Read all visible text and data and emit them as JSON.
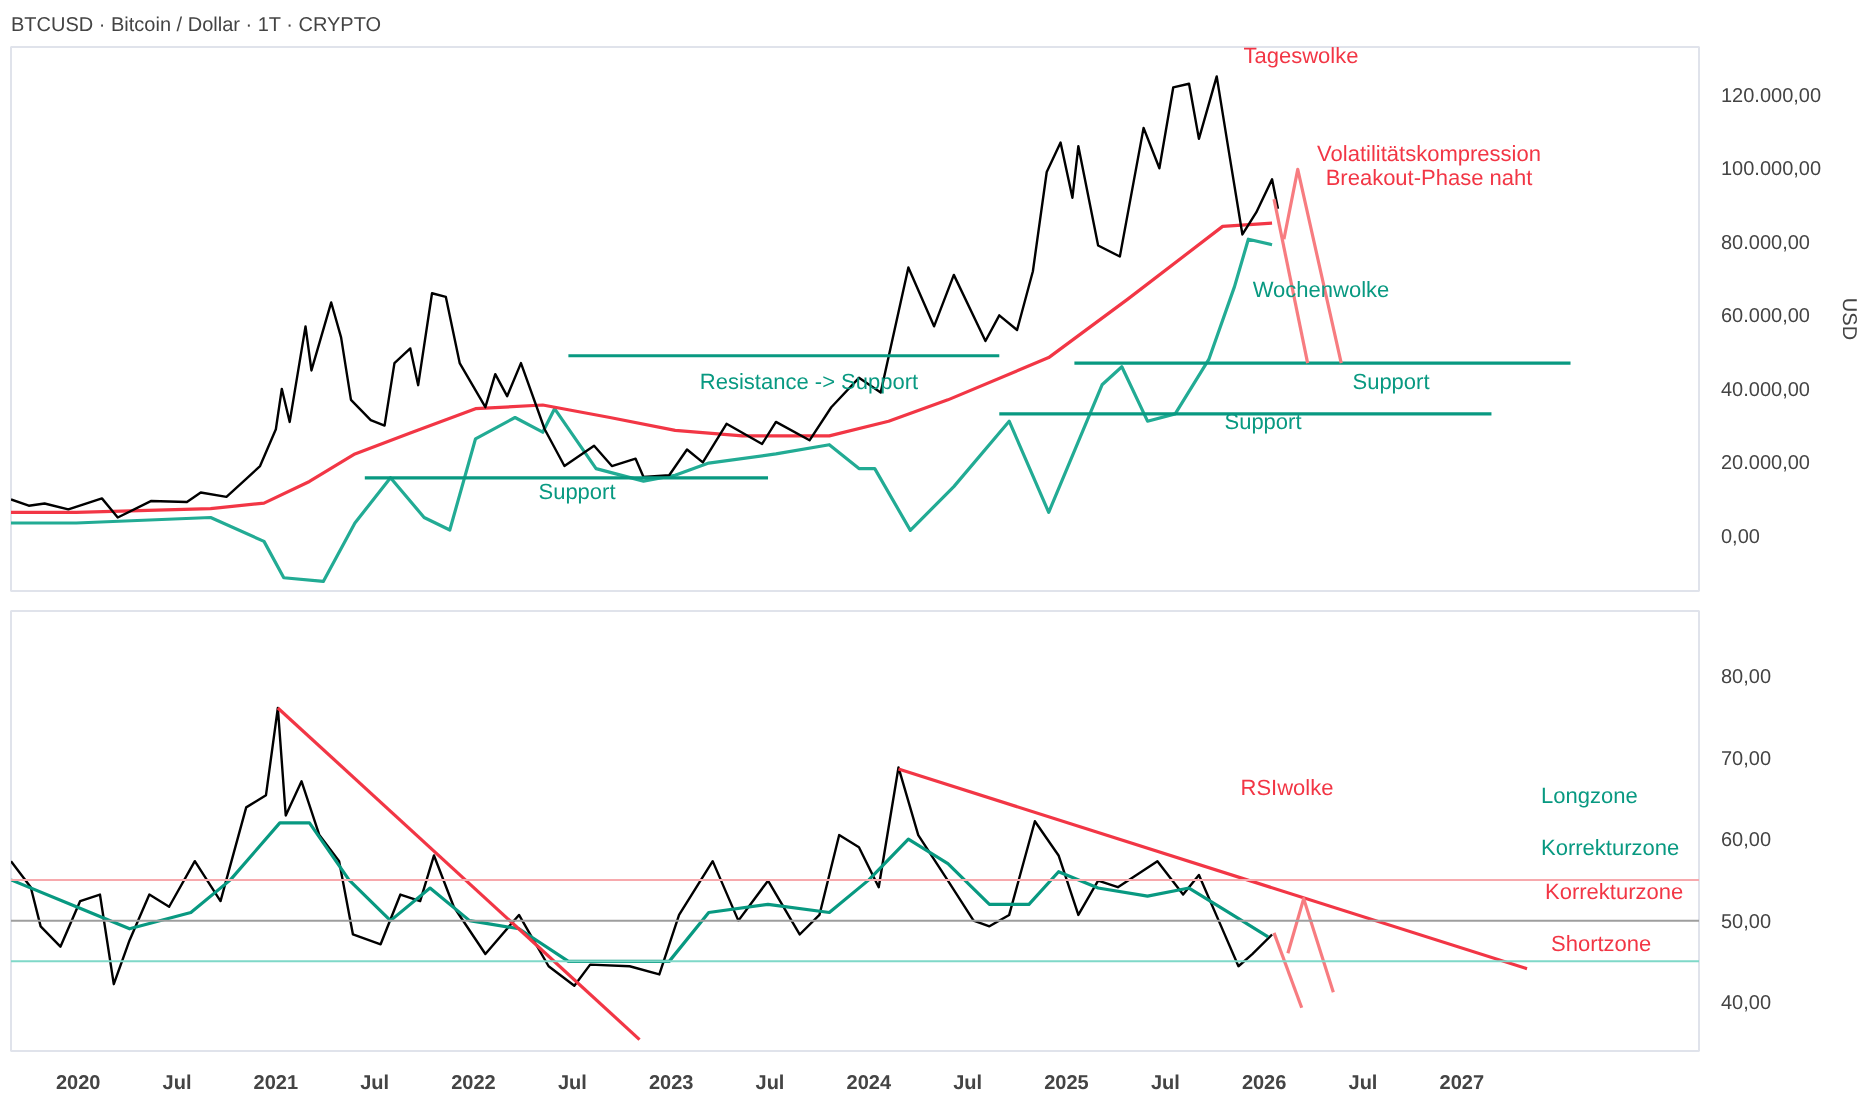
{
  "chart_data": [
    {
      "type": "line",
      "title": "BTCUSD · Bitcoin / Dollar · 1T · CRYPTO",
      "ylabel": "USD",
      "tick_labels": "y",
      "xlim": [
        2019.66,
        2028.2
      ],
      "ylim": [
        -15000,
        133000
      ],
      "yticks": [
        {
          "value": 0,
          "label": "0,00"
        },
        {
          "value": 20000,
          "label": "20.000,00"
        },
        {
          "value": 40000,
          "label": "40.000,00"
        },
        {
          "value": 60000,
          "label": "60.000,00"
        },
        {
          "value": 80000,
          "label": "80.000,00"
        },
        {
          "value": 100000,
          "label": "100.000,00"
        },
        {
          "value": 120000,
          "label": "120.000,00"
        }
      ],
      "series": [
        {
          "color": "#22ab94",
          "x": [
            2019.66,
            2019.99,
            2020.67,
            2020.94,
            2021.04,
            2021.24,
            2021.4,
            2021.58,
            2021.75,
            2021.88,
            2022.01,
            2022.21,
            2022.35,
            2022.41,
            2022.62,
            2022.86,
            2023.02,
            2023.19,
            2023.53,
            2023.8,
            2023.95,
            2024.03,
            2024.21,
            2024.43,
            2024.71,
            2024.91,
            2025.18,
            2025.28,
            2025.41,
            2025.55,
            2025.72,
            2025.85,
            2025.92,
            2026.04
          ],
          "values": [
            3500,
            3500,
            5000,
            -1500,
            -11400,
            -12400,
            3500,
            15800,
            5000,
            1600,
            26400,
            32200,
            28200,
            34600,
            18300,
            14900,
            16500,
            19800,
            22300,
            24800,
            18300,
            18300,
            1500,
            13400,
            31200,
            6400,
            41100,
            46000,
            31200,
            33200,
            48000,
            67800,
            80700,
            79200
          ]
        },
        {
          "color": "#f23645",
          "x": [
            2019.66,
            2019.99,
            2020.67,
            2020.94,
            2021.17,
            2021.4,
            2021.68,
            2022.01,
            2022.35,
            2022.69,
            2023.02,
            2023.36,
            2023.8,
            2024.1,
            2024.4,
            2024.91,
            2025.31,
            2025.79,
            2026.04
          ],
          "values": [
            6400,
            6400,
            7400,
            8900,
            14800,
            22300,
            28000,
            34600,
            35600,
            32200,
            28700,
            27200,
            27200,
            31200,
            37000,
            48500,
            64400,
            84200,
            85100
          ]
        },
        {
          "color": "#000000",
          "x": [
            2019.66,
            2019.75,
            2019.83,
            2019.95,
            2020.12,
            2020.2,
            2020.37,
            2020.55,
            2020.62,
            2020.75,
            2020.85,
            2020.92,
            2021.0,
            2021.03,
            2021.07,
            2021.15,
            2021.18,
            2021.28,
            2021.33,
            2021.38,
            2021.48,
            2021.55,
            2021.6,
            2021.68,
            2021.72,
            2021.79,
            2021.86,
            2021.93,
            2022.06,
            2022.11,
            2022.17,
            2022.24,
            2022.36,
            2022.46,
            2022.61,
            2022.7,
            2022.82,
            2022.86,
            2022.99,
            2023.08,
            2023.16,
            2023.28,
            2023.46,
            2023.53,
            2023.7,
            2023.81,
            2023.95,
            2024.06,
            2024.2,
            2024.33,
            2024.43,
            2024.59,
            2024.66,
            2024.75,
            2024.83,
            2024.9,
            2024.97,
            2025.03,
            2025.06,
            2025.16,
            2025.27,
            2025.39,
            2025.47,
            2025.54,
            2025.62,
            2025.67,
            2025.76,
            2025.82,
            2025.89,
            2025.96,
            2026.04,
            2026.07
          ],
          "values": [
            9900,
            8200,
            8800,
            7200,
            10200,
            5000,
            9500,
            9200,
            11800,
            10600,
            15500,
            19000,
            29000,
            40000,
            31000,
            57000,
            45000,
            63500,
            54000,
            37000,
            31500,
            30000,
            47000,
            51000,
            41000,
            66000,
            65000,
            47000,
            35000,
            44000,
            38000,
            47000,
            29000,
            19000,
            24500,
            19000,
            21000,
            16000,
            16500,
            23500,
            20000,
            30500,
            25000,
            31000,
            26000,
            35000,
            43000,
            39000,
            73000,
            57000,
            71000,
            53000,
            60000,
            56000,
            72000,
            99000,
            107000,
            92000,
            106000,
            79000,
            76000,
            111000,
            100000,
            122000,
            123000,
            108000,
            125000,
            105000,
            82000,
            88000,
            97000,
            89000
          ]
        },
        {
          "color": "#089981",
          "x": [
            2022.48,
            2024.66
          ],
          "values": [
            49000,
            49000
          ]
        },
        {
          "color": "#089981",
          "x": [
            2021.45,
            2023.49
          ],
          "values": [
            15800,
            15800
          ]
        },
        {
          "color": "#089981",
          "x": [
            2025.04,
            2027.55
          ],
          "values": [
            47000,
            47000
          ]
        },
        {
          "color": "#089981",
          "x": [
            2024.66,
            2027.15
          ],
          "values": [
            33200,
            33200
          ]
        },
        {
          "color": "#f77c80",
          "x": [
            2026.05,
            2026.22
          ],
          "values": [
            91600,
            47000
          ]
        },
        {
          "color": "#f77c80",
          "x": [
            2026.1,
            2026.17,
            2026.39
          ],
          "values": [
            80700,
            99700,
            47000
          ]
        }
      ],
      "annotations": [
        "Tageswolke",
        "Volatilitätskompression",
        "Breakout-Phase naht",
        "Wochenwolke",
        "Resistance -> Support",
        "Support",
        "Support",
        "Support"
      ]
    },
    {
      "type": "line",
      "xlim": [
        2019.66,
        2028.2
      ],
      "ylim": [
        34,
        88
      ],
      "xticks": [
        {
          "value": 2020,
          "label": "2020"
        },
        {
          "value": 2020.5,
          "label": "Jul"
        },
        {
          "value": 2021,
          "label": "2021"
        },
        {
          "value": 2021.5,
          "label": "Jul"
        },
        {
          "value": 2022,
          "label": "2022"
        },
        {
          "value": 2022.5,
          "label": "Jul"
        },
        {
          "value": 2023,
          "label": "2023"
        },
        {
          "value": 2023.5,
          "label": "Jul"
        },
        {
          "value": 2024,
          "label": "2024"
        },
        {
          "value": 2024.5,
          "label": "Jul"
        },
        {
          "value": 2025,
          "label": "2025"
        },
        {
          "value": 2025.5,
          "label": "Jul"
        },
        {
          "value": 2026,
          "label": "2026"
        },
        {
          "value": 2026.5,
          "label": "Jul"
        },
        {
          "value": 2027,
          "label": "2027"
        }
      ],
      "yticks": [
        {
          "value": 40,
          "label": "40,00"
        },
        {
          "value": 50,
          "label": "50,00"
        },
        {
          "value": 60,
          "label": "60,00"
        },
        {
          "value": 70,
          "label": "70,00"
        },
        {
          "value": 80,
          "label": "80,00"
        }
      ],
      "ref_lines": [
        {
          "axis": "y",
          "value": 55,
          "color": "#f7a9ad"
        },
        {
          "axis": "y",
          "value": 50,
          "color": "#9e9e9e"
        },
        {
          "axis": "y",
          "value": 45,
          "color": "#7fd8c8"
        }
      ],
      "series": [
        {
          "color": "#000000",
          "x": [
            2019.66,
            2019.76,
            2019.81,
            2019.91,
            2020.01,
            2020.11,
            2020.18,
            2020.26,
            2020.36,
            2020.46,
            2020.59,
            2020.72,
            2020.85,
            2020.95,
            2021.01,
            2021.05,
            2021.13,
            2021.22,
            2021.32,
            2021.39,
            2021.53,
            2021.63,
            2021.73,
            2021.8,
            2021.9,
            2022.06,
            2022.23,
            2022.38,
            2022.51,
            2022.59,
            2022.79,
            2022.94,
            2023.04,
            2023.21,
            2023.34,
            2023.49,
            2023.65,
            2023.75,
            2023.85,
            2023.95,
            2024.05,
            2024.15,
            2024.25,
            2024.4,
            2024.53,
            2024.61,
            2024.71,
            2024.84,
            2024.96,
            2025.06,
            2025.16,
            2025.26,
            2025.46,
            2025.59,
            2025.67,
            2025.77,
            2025.87,
            2025.94,
            2026.04
          ],
          "values": [
            57.3,
            54.1,
            49.3,
            46.8,
            52.4,
            53.2,
            42.2,
            47.6,
            53.2,
            51.7,
            57.3,
            52.4,
            63.9,
            65.4,
            76.1,
            62.9,
            67.1,
            60.5,
            57.3,
            48.3,
            47.1,
            53.2,
            52.4,
            58.0,
            51.7,
            45.9,
            50.7,
            44.4,
            42.0,
            44.6,
            44.4,
            43.4,
            50.7,
            57.3,
            50.0,
            54.9,
            48.3,
            50.7,
            60.5,
            59.0,
            54.1,
            68.8,
            60.5,
            54.9,
            50.0,
            49.3,
            50.7,
            62.2,
            58.0,
            50.7,
            54.9,
            54.1,
            57.3,
            53.2,
            55.6,
            50.0,
            44.4,
            45.9,
            48.3
          ]
        },
        {
          "color": "#089981",
          "x": [
            2019.66,
            2019.96,
            2020.26,
            2020.57,
            2020.77,
            2021.02,
            2021.17,
            2021.37,
            2021.58,
            2021.78,
            2021.98,
            2022.23,
            2022.48,
            2022.79,
            2022.99,
            2023.19,
            2023.49,
            2023.8,
            2024.0,
            2024.2,
            2024.4,
            2024.61,
            2024.81,
            2024.96,
            2025.16,
            2025.41,
            2025.62,
            2025.82,
            2026.02
          ],
          "values": [
            55,
            52,
            49,
            51,
            55,
            62,
            62,
            55,
            50,
            54,
            50,
            49,
            45,
            45,
            45,
            51,
            52,
            51,
            55,
            60,
            57,
            52,
            52,
            56,
            54,
            53,
            54,
            51,
            48
          ]
        },
        {
          "color": "#f23645",
          "x": [
            2021.01,
            2022.84
          ],
          "values": [
            76.1,
            35.4
          ]
        },
        {
          "color": "#f23645",
          "x": [
            2024.15,
            2027.33
          ],
          "values": [
            68.6,
            44.1
          ]
        },
        {
          "color": "#f77c80",
          "x": [
            2026.05,
            2026.19
          ],
          "values": [
            48.5,
            39.3
          ]
        },
        {
          "color": "#f77c80",
          "x": [
            2026.12,
            2026.2,
            2026.35
          ],
          "values": [
            46,
            52.7,
            41.2
          ]
        }
      ],
      "annotations": [
        "RSIwolke",
        "Longzone",
        "Korrekturzone",
        "Korrekturzone",
        "Shortzone"
      ]
    }
  ]
}
